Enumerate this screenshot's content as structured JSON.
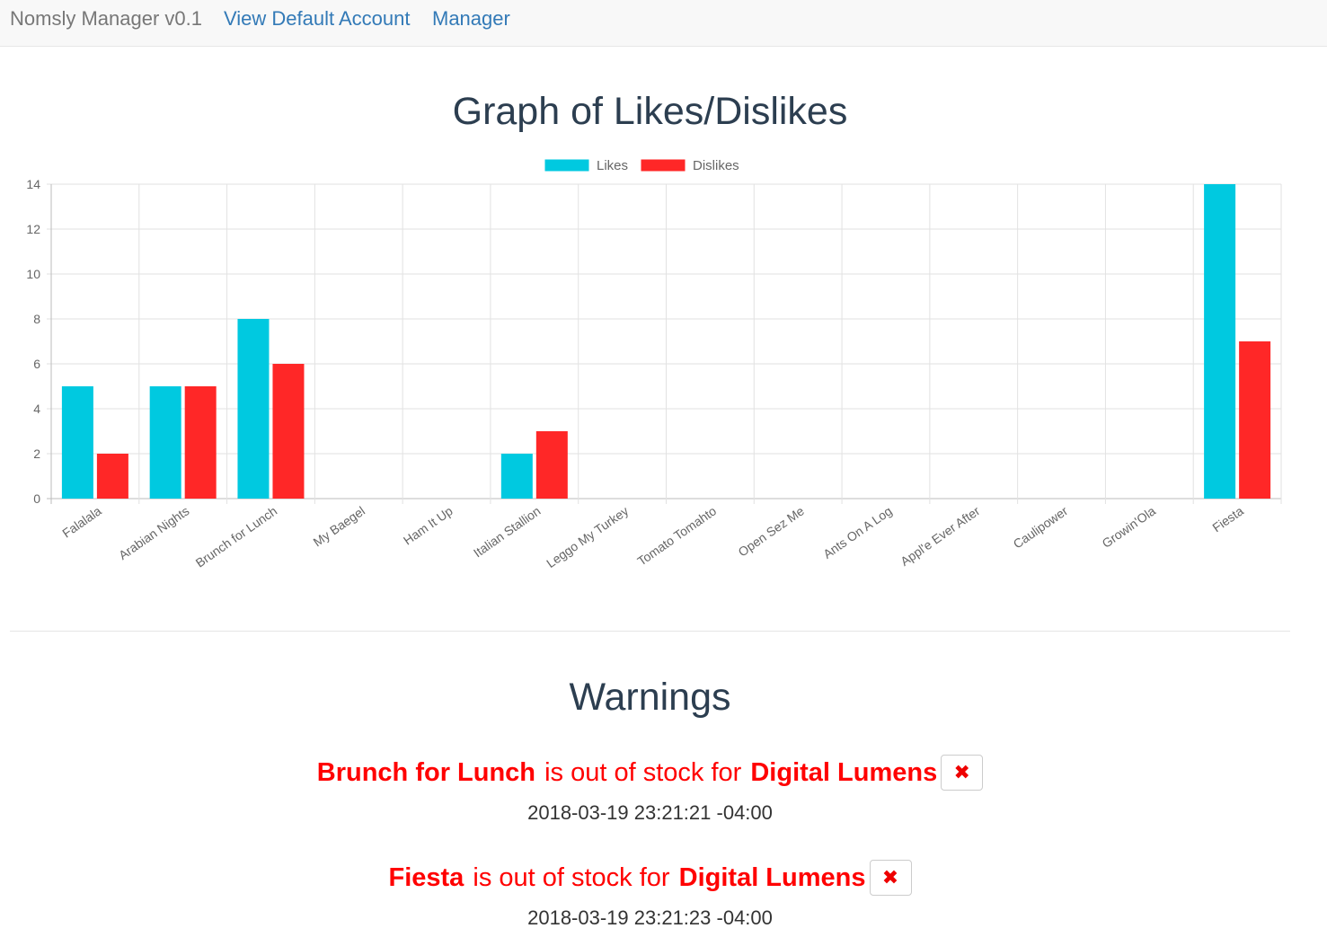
{
  "navbar": {
    "brand": "Nomsly Manager v0.1",
    "links": [
      "View Default Account",
      "Manager"
    ],
    "link_color": "#337ab7"
  },
  "chart_title": "Graph of Likes/Dislikes",
  "chart_data": {
    "type": "bar",
    "categories": [
      "Falalala",
      "Arabian Nights",
      "Brunch for Lunch",
      "My Baegel",
      "Ham It Up",
      "Italian Stallion",
      "Leggo My Turkey",
      "Tomato Tomahto",
      "Open Sez Me",
      "Ants On A Log",
      "Appl'e Ever After",
      "Caulipower",
      "Growin'Ola",
      "Fiesta"
    ],
    "series": [
      {
        "name": "Likes",
        "color": "#00c9e0",
        "values": [
          5,
          5,
          8,
          0,
          0,
          2,
          0,
          0,
          0,
          0,
          0,
          0,
          0,
          14
        ]
      },
      {
        "name": "Dislikes",
        "color": "#ff2727",
        "values": [
          2,
          5,
          6,
          0,
          0,
          3,
          0,
          0,
          0,
          0,
          0,
          0,
          0,
          7
        ]
      }
    ],
    "ylim": [
      0,
      14
    ],
    "yticks": [
      0,
      2,
      4,
      6,
      8,
      10,
      12,
      14
    ],
    "grid": true,
    "legend": "top-center"
  },
  "warnings": {
    "title": "Warnings",
    "items": [
      {
        "item": "Brunch for Lunch",
        "text": " is out of stock for ",
        "account": "Digital Lumens",
        "timestamp": "2018-03-19 23:21:21 -04:00",
        "dismiss_icon": "times-icon"
      },
      {
        "item": "Fiesta",
        "text": " is out of stock for ",
        "account": "Digital Lumens",
        "timestamp": "2018-03-19 23:21:23 -04:00",
        "dismiss_icon": "times-icon"
      }
    ]
  }
}
